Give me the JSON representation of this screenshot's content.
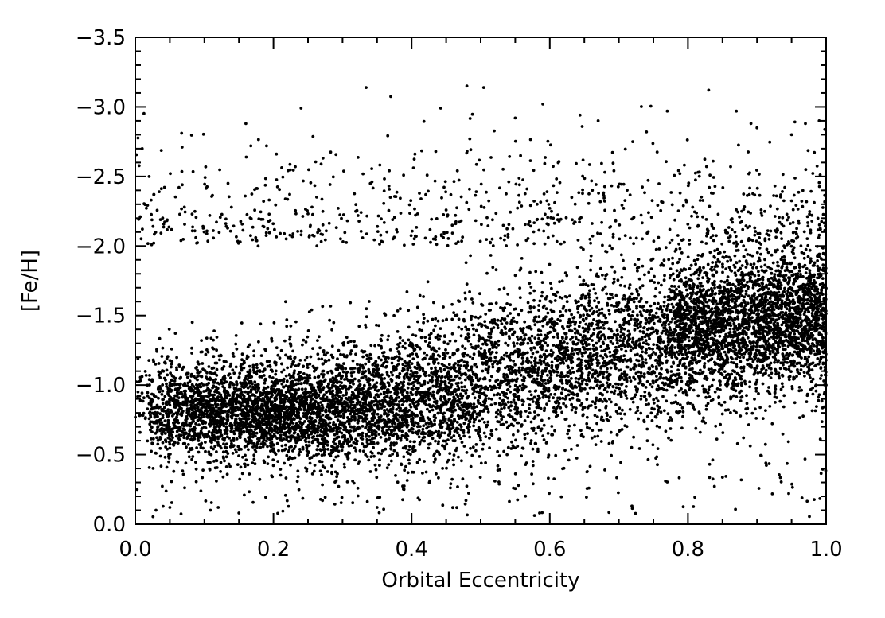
{
  "chart_data": {
    "type": "scatter",
    "title": "",
    "xlabel": "Orbital Eccentricity",
    "ylabel": "[Fe/H]",
    "xlim": [
      0.0,
      1.0
    ],
    "ylim": [
      0.0,
      -3.5
    ],
    "y_axis_inverted": true,
    "grid": false,
    "legend": "none",
    "marker_color": "#000000",
    "x_ticks": [
      0.0,
      0.2,
      0.4,
      0.6,
      0.8,
      1.0
    ],
    "x_tick_labels": [
      "0.0",
      "0.2",
      "0.4",
      "0.6",
      "0.8",
      "1.0"
    ],
    "y_ticks": [
      0.0,
      -0.5,
      -1.0,
      -1.5,
      -2.0,
      -2.5,
      -3.0,
      -3.5
    ],
    "y_tick_labels": [
      "0.0",
      "−0.5",
      "−1.0",
      "−1.5",
      "−2.0",
      "−2.5",
      "−3.0",
      "−3.5"
    ],
    "series": [
      {
        "values_note": "dense star sample; representative approximately 10000 points",
        "x": [
          0.48,
          0.83,
          0.59,
          0.16,
          0.77,
          0.99,
          0.95,
          0.87,
          0.19,
          0.55,
          0.12,
          0.35,
          0.05,
          0.15,
          0.03,
          0.01,
          0.02,
          0.67,
          0.74,
          0.72,
          0.9,
          0.97
        ],
        "y": [
          -3.15,
          -3.12,
          -3.02,
          -2.88,
          -2.97,
          -2.9,
          -2.8,
          -2.97,
          -2.72,
          -2.92,
          -0.12,
          -0.12,
          -0.12,
          -0.08,
          -0.1,
          -2.7,
          -2.5,
          -2.9,
          -2.82,
          -2.75,
          -2.85,
          -2.88
        ]
      }
    ]
  }
}
